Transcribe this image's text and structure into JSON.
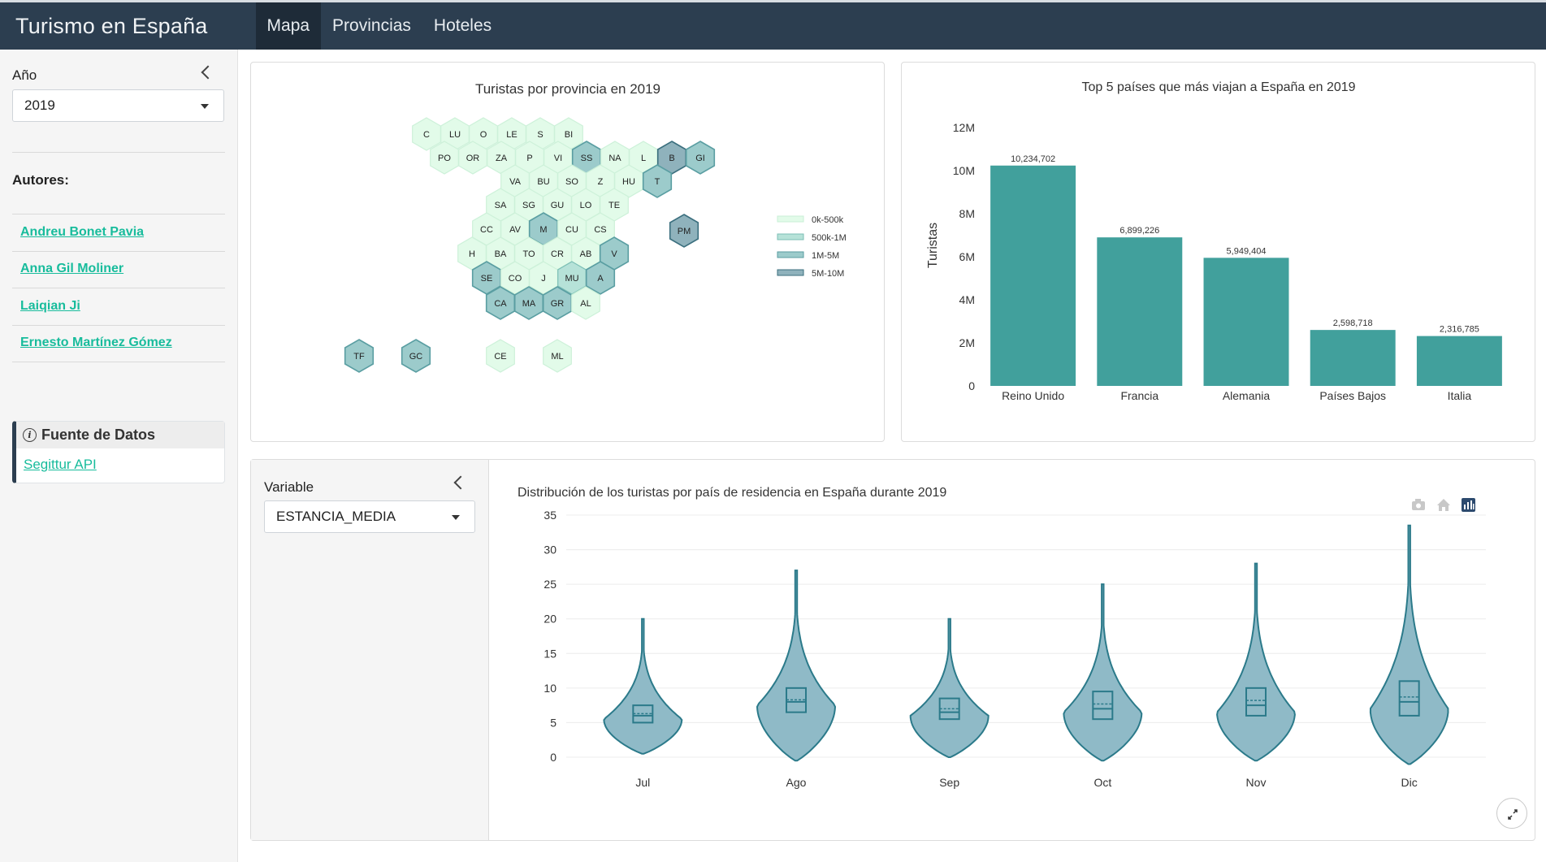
{
  "navbar": {
    "title": "Turismo en España",
    "tabs": [
      {
        "label": "Mapa",
        "active": true
      },
      {
        "label": "Provincias",
        "active": false
      },
      {
        "label": "Hoteles",
        "active": false
      }
    ]
  },
  "sidebar": {
    "year_label": "Año",
    "year_value": "2019",
    "authors_label": "Autores:",
    "authors": [
      "Andreu Bonet Pavia",
      "Anna Gil Moliner",
      "Laiqian Ji",
      "Ernesto Martínez Gómez"
    ],
    "source_title": "Fuente de Datos",
    "source_link": "Segittur API"
  },
  "colors": {
    "navbar": "#2c3e50",
    "accent": "#18bc9c",
    "bar": "#41a09c",
    "violin_fill": "#8fbac7",
    "violin_line": "#2b7a8a",
    "bin0": "#e2fbe9",
    "bin1": "#b6e2d8",
    "bin2": "#9ccbcb",
    "bin3": "#8fb2bc"
  },
  "hexmap": {
    "title": "Turistas por provincia en 2019",
    "legend": [
      "0k-500k",
      "500k-1M",
      "1M-5M",
      "5M-10M"
    ],
    "provinces": [
      {
        "code": "C",
        "bin": 0
      },
      {
        "code": "LU",
        "bin": 0
      },
      {
        "code": "O",
        "bin": 0
      },
      {
        "code": "LE",
        "bin": 0
      },
      {
        "code": "S",
        "bin": 0
      },
      {
        "code": "BI",
        "bin": 0
      },
      {
        "code": "PO",
        "bin": 0
      },
      {
        "code": "OR",
        "bin": 0
      },
      {
        "code": "ZA",
        "bin": 0
      },
      {
        "code": "P",
        "bin": 0
      },
      {
        "code": "VI",
        "bin": 0
      },
      {
        "code": "SS",
        "bin": 2
      },
      {
        "code": "NA",
        "bin": 0
      },
      {
        "code": "L",
        "bin": 0
      },
      {
        "code": "B",
        "bin": 3
      },
      {
        "code": "GI",
        "bin": 2
      },
      {
        "code": "VA",
        "bin": 0
      },
      {
        "code": "BU",
        "bin": 0
      },
      {
        "code": "SO",
        "bin": 0
      },
      {
        "code": "Z",
        "bin": 0
      },
      {
        "code": "HU",
        "bin": 0
      },
      {
        "code": "T",
        "bin": 2
      },
      {
        "code": "SA",
        "bin": 0
      },
      {
        "code": "SG",
        "bin": 0
      },
      {
        "code": "GU",
        "bin": 0
      },
      {
        "code": "LO",
        "bin": 0
      },
      {
        "code": "TE",
        "bin": 0
      },
      {
        "code": "CC",
        "bin": 0
      },
      {
        "code": "AV",
        "bin": 0
      },
      {
        "code": "M",
        "bin": 2
      },
      {
        "code": "CU",
        "bin": 0
      },
      {
        "code": "CS",
        "bin": 0
      },
      {
        "code": "PM",
        "bin": 3
      },
      {
        "code": "H",
        "bin": 0
      },
      {
        "code": "BA",
        "bin": 0
      },
      {
        "code": "TO",
        "bin": 0
      },
      {
        "code": "CR",
        "bin": 0
      },
      {
        "code": "AB",
        "bin": 0
      },
      {
        "code": "V",
        "bin": 2
      },
      {
        "code": "SE",
        "bin": 2
      },
      {
        "code": "CO",
        "bin": 0
      },
      {
        "code": "J",
        "bin": 0
      },
      {
        "code": "MU",
        "bin": 1
      },
      {
        "code": "A",
        "bin": 2
      },
      {
        "code": "CA",
        "bin": 2
      },
      {
        "code": "MA",
        "bin": 2
      },
      {
        "code": "GR",
        "bin": 2
      },
      {
        "code": "AL",
        "bin": 0
      },
      {
        "code": "TF",
        "bin": 2
      },
      {
        "code": "GC",
        "bin": 2
      },
      {
        "code": "CE",
        "bin": 0
      },
      {
        "code": "ML",
        "bin": 0
      }
    ]
  },
  "chart_data": [
    {
      "type": "bar",
      "title": "Top 5 países que más viajan a España en 2019",
      "categories": [
        "Reino Unido",
        "Francia",
        "Alemania",
        "Países Bajos",
        "Italia"
      ],
      "values": [
        10234702,
        6899226,
        5949404,
        2598718,
        2316785
      ],
      "data_labels": [
        "10,234,702",
        "6,899,226",
        "5,949,404",
        "2,598,718",
        "2,316,785"
      ],
      "ylabel": "Turistas",
      "ylim": [
        0,
        12000000
      ],
      "yticks": [
        0,
        2000000,
        4000000,
        6000000,
        8000000,
        10000000,
        12000000
      ],
      "ytick_labels": [
        "0",
        "2M",
        "4M",
        "6M",
        "8M",
        "10M",
        "12M"
      ],
      "grid": false
    },
    {
      "type": "violin",
      "title": "Distribución de los turistas por país de residencia en España durante 2019",
      "categories": [
        "Jul",
        "Ago",
        "Sep",
        "Oct",
        "Nov",
        "Dic"
      ],
      "ylim": [
        0,
        35
      ],
      "yticks": [
        0,
        5,
        10,
        15,
        20,
        25,
        30,
        35
      ],
      "series": [
        {
          "x": "Jul",
          "min": 0.5,
          "q1": 5,
          "median": 6,
          "mean": 6.3,
          "q3": 7.5,
          "max": 20,
          "peak": 5.5,
          "width": 1.0
        },
        {
          "x": "Ago",
          "min": -0.5,
          "q1": 6.5,
          "median": 8,
          "mean": 8.3,
          "q3": 10,
          "max": 27,
          "peak": 7.5,
          "width": 1.0
        },
        {
          "x": "Sep",
          "min": 0,
          "q1": 5.5,
          "median": 6.5,
          "mean": 7,
          "q3": 8.5,
          "max": 20,
          "peak": 6,
          "width": 1.0
        },
        {
          "x": "Oct",
          "min": -0.5,
          "q1": 5.5,
          "median": 7,
          "mean": 7.7,
          "q3": 9.5,
          "max": 25,
          "peak": 6.5,
          "width": 1.0
        },
        {
          "x": "Nov",
          "min": -0.5,
          "q1": 6,
          "median": 7.5,
          "mean": 8.2,
          "q3": 10,
          "max": 28,
          "peak": 6.5,
          "width": 1.0
        },
        {
          "x": "Dic",
          "min": -1,
          "q1": 6,
          "median": 8,
          "mean": 8.7,
          "q3": 11,
          "max": 33.5,
          "peak": 7,
          "width": 1.0
        }
      ],
      "grid": true
    }
  ],
  "variable_panel": {
    "label": "Variable",
    "value": "ESTANCIA_MEDIA"
  },
  "modebar": [
    "camera-icon",
    "home-icon",
    "plotly-logo-icon"
  ]
}
